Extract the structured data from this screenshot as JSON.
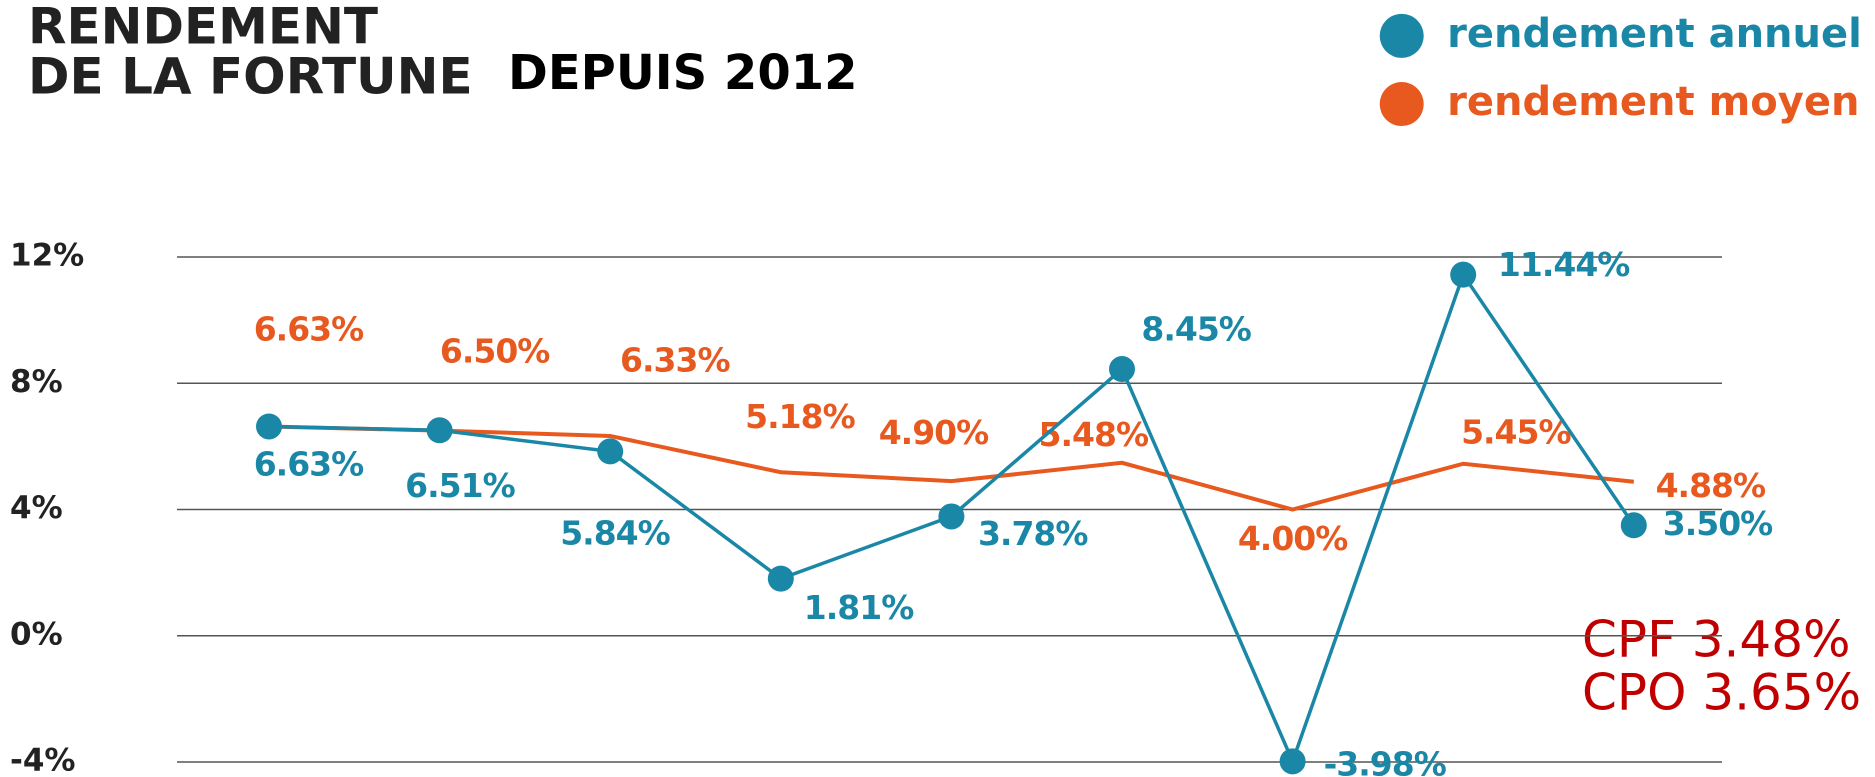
{
  "chart_data": {
    "type": "line",
    "title": [
      "RENDEMENT",
      "DE LA FORTUNE"
    ],
    "subtitle": "DEPUIS 2012",
    "categories": [
      null,
      null,
      null,
      null,
      null,
      null,
      null,
      null,
      null
    ],
    "series": [
      {
        "name": "rendement annuel",
        "color": "#1a87a6",
        "values": [
          6.63,
          6.51,
          5.84,
          1.81,
          3.78,
          8.45,
          -3.98,
          11.44,
          3.5
        ],
        "value_labels": [
          "6.63%",
          "6.51%",
          "5.84%",
          "1.81%",
          "3.78%",
          "8.45%",
          "-3.98%",
          "11.44%",
          "3.50%"
        ]
      },
      {
        "name": "rendement moyen",
        "color": "#e8591f",
        "values": [
          6.63,
          6.5,
          6.33,
          5.18,
          4.9,
          5.48,
          4.0,
          5.45,
          4.88
        ],
        "value_labels": [
          "6.63%",
          "6.50%",
          "6.33%",
          "5.18%",
          "4.90%",
          "5.48%",
          "4.00%",
          "5.45%",
          "4.88%"
        ]
      }
    ],
    "ylim": [
      -4,
      12
    ],
    "yticks": [
      {
        "value": -4,
        "label": "-4%"
      },
      {
        "value": 0,
        "label": "0%"
      },
      {
        "value": 4,
        "label": "4%"
      },
      {
        "value": 8,
        "label": "8%"
      },
      {
        "value": 12,
        "label": "12%"
      }
    ],
    "grid": true,
    "legend": "top-right",
    "annotations": [
      "CPF 3.48%",
      "CPO 3.65%"
    ]
  }
}
